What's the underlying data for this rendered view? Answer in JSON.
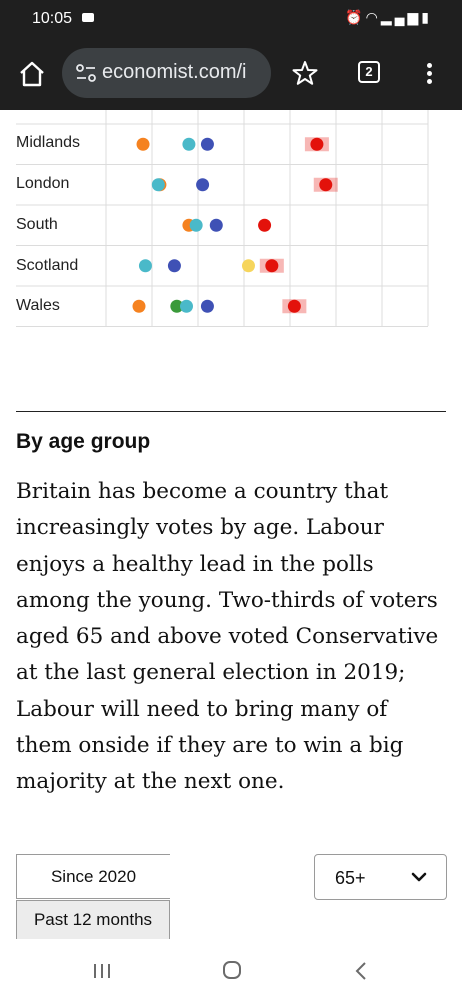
{
  "status_bar": {
    "time": "10:05",
    "icons": [
      "message-icon",
      "alarm-icon",
      "wifi-icon",
      "signal-icon",
      "battery-icon"
    ]
  },
  "browser": {
    "url": "economist.com/i",
    "tab_count": "2"
  },
  "chart_data": {
    "type": "scatter",
    "categories": [
      "Midlands",
      "London",
      "South",
      "Scotland",
      "Wales"
    ],
    "series": [
      {
        "color": "#f58220",
        "values": [
          null,
          null,
          null,
          null,
          null
        ]
      },
      {
        "color": "#4ab9c9",
        "values": [
          null,
          null,
          null,
          null,
          null
        ]
      },
      {
        "color": "#3f51b5",
        "values": [
          null,
          null,
          null,
          null,
          null
        ]
      },
      {
        "color": "#e3120b",
        "values": [
          null,
          null,
          null,
          null,
          null
        ]
      },
      {
        "color": "#f6d55c",
        "values": [
          null,
          null,
          null,
          null,
          null
        ]
      },
      {
        "color": "#3a9a3a",
        "values": [
          null,
          null,
          null,
          null,
          null
        ]
      }
    ],
    "points": [
      {
        "row": 0,
        "x": 0.23,
        "color": "#f58220",
        "shadow": false
      },
      {
        "row": 0,
        "x": 0.515,
        "color": "#4ab9c9",
        "shadow": false
      },
      {
        "row": 0,
        "x": 0.63,
        "color": "#3f51b5",
        "shadow": false
      },
      {
        "row": 0,
        "x": 1.31,
        "color": "#e3120b",
        "shadow": true
      },
      {
        "row": 1,
        "x": 0.335,
        "color": "#f58220",
        "shadow": false
      },
      {
        "row": 1,
        "x": 0.325,
        "color": "#4ab9c9",
        "shadow": false
      },
      {
        "row": 1,
        "x": 0.6,
        "color": "#3f51b5",
        "shadow": false
      },
      {
        "row": 1,
        "x": 1.365,
        "color": "#e3120b",
        "shadow": true
      },
      {
        "row": 2,
        "x": 0.515,
        "color": "#f58220",
        "shadow": false
      },
      {
        "row": 2,
        "x": 0.56,
        "color": "#4ab9c9",
        "shadow": false
      },
      {
        "row": 2,
        "x": 0.685,
        "color": "#3f51b5",
        "shadow": false
      },
      {
        "row": 2,
        "x": 0.985,
        "color": "#e3120b",
        "shadow": false
      },
      {
        "row": 3,
        "x": 0.245,
        "color": "#4ab9c9",
        "shadow": false
      },
      {
        "row": 3,
        "x": 0.425,
        "color": "#3f51b5",
        "shadow": false
      },
      {
        "row": 3,
        "x": 0.885,
        "color": "#f6d55c",
        "shadow": false
      },
      {
        "row": 3,
        "x": 1.03,
        "color": "#e3120b",
        "shadow": true
      },
      {
        "row": 4,
        "x": 0.205,
        "color": "#f58220",
        "shadow": false
      },
      {
        "row": 4,
        "x": 0.44,
        "color": "#3a9a3a",
        "shadow": false
      },
      {
        "row": 4,
        "x": 0.5,
        "color": "#4ab9c9",
        "shadow": false
      },
      {
        "row": 4,
        "x": 0.63,
        "color": "#3f51b5",
        "shadow": false
      },
      {
        "row": 4,
        "x": 1.17,
        "color": "#e3120b",
        "shadow": true
      }
    ],
    "xlim": [
      0,
      2
    ],
    "grid": true
  },
  "section": {
    "title": "By age group",
    "body": "Britain has become a country that increasingly votes by age. Labour enjoys a healthy lead in the polls among the young. Two-thirds of voters aged 65 and above voted Conservative at the last general election in 2019; Labour will need to bring many of them onside if they are to win a big majority at the next one."
  },
  "controls": {
    "since_label": "Since 2020",
    "past_label": "Past 12 months",
    "age_value": "65+"
  }
}
